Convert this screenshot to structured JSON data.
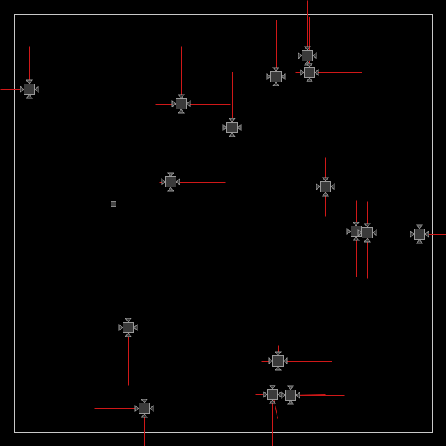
{
  "colors": {
    "background": "#000000",
    "arena_border": "#c8c8c8",
    "ray": "#d01818",
    "unit_fill": "#3a3a3a",
    "unit_stroke": "#9a9a9a",
    "marker_fill": "#444444",
    "marker_stroke": "#8a8a8a"
  },
  "icons": {
    "unit": "square-with-four-arrow-handles-icon",
    "marker": "small-square-marker-icon"
  },
  "units": [
    {
      "id": "unit-1"
    },
    {
      "id": "unit-2"
    },
    {
      "id": "unit-3"
    },
    {
      "id": "unit-4"
    },
    {
      "id": "unit-5"
    },
    {
      "id": "unit-6"
    },
    {
      "id": "unit-7"
    },
    {
      "id": "unit-8"
    },
    {
      "id": "unit-9"
    },
    {
      "id": "unit-10"
    },
    {
      "id": "unit-11"
    },
    {
      "id": "unit-12"
    },
    {
      "id": "unit-13"
    },
    {
      "id": "unit-14"
    },
    {
      "id": "unit-15"
    },
    {
      "id": "unit-16"
    },
    {
      "id": "unit-17"
    }
  ],
  "markers": [
    {
      "id": "marker-1"
    }
  ]
}
